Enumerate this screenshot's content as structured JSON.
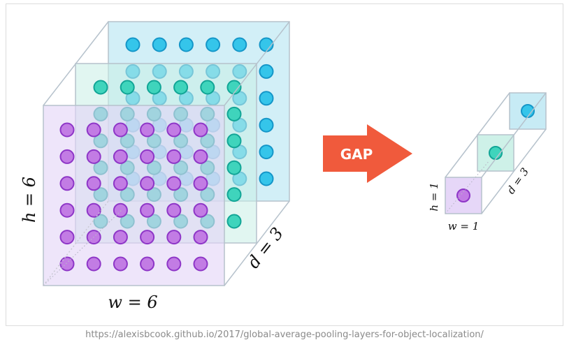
{
  "arrow": {
    "label": "GAP",
    "color": "#f05a3c"
  },
  "left_volume": {
    "height_label": "h = 6",
    "width_label": "w = 6",
    "depth_label": "d = 3",
    "rows": 6,
    "cols": 6,
    "channels": [
      {
        "name": "front",
        "fill": "#e3d3f7",
        "dot": "#c27ce4",
        "dot_stroke": "#8e36c7"
      },
      {
        "name": "middle",
        "fill": "#c9efe6",
        "dot": "#3fd4bc",
        "dot_stroke": "#12a596"
      },
      {
        "name": "back",
        "fill": "#c7ebf5",
        "dot": "#35c5ea",
        "dot_stroke": "#1596c8"
      }
    ]
  },
  "right_volume": {
    "height_label": "h = 1",
    "width_label": "w = 1",
    "depth_label": "d = 3"
  },
  "caption": "https://alexisbcook.github.io/2017/global-average-pooling-layers-for-object-localization/"
}
